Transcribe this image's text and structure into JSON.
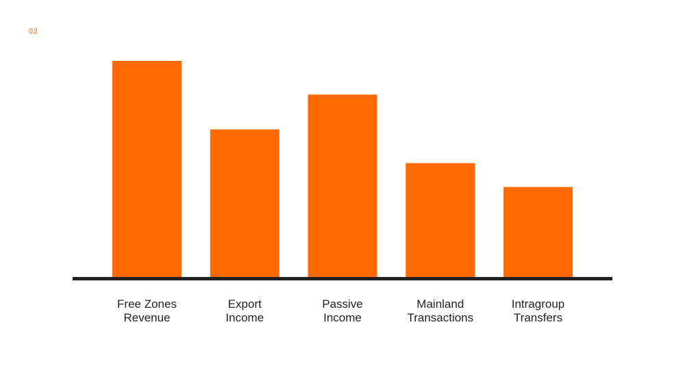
{
  "page": {
    "number": "02"
  },
  "colors": {
    "bar": "#ff6a00",
    "axis": "#231f20",
    "text": "#1f1f1f",
    "accent": "#ff6a00"
  },
  "chart_data": {
    "type": "bar",
    "title": "",
    "xlabel": "",
    "ylabel": "",
    "grid": false,
    "categories": [
      [
        "Free Zones",
        "Revenue"
      ],
      [
        "Export",
        "Income"
      ],
      [
        "Passive",
        "Income"
      ],
      [
        "Mainland",
        "Transactions"
      ],
      [
        "Intragroup",
        "Transfers"
      ]
    ],
    "values": [
      100,
      68.5,
      84.5,
      53,
      42
    ],
    "ylim": [
      0,
      100
    ]
  }
}
